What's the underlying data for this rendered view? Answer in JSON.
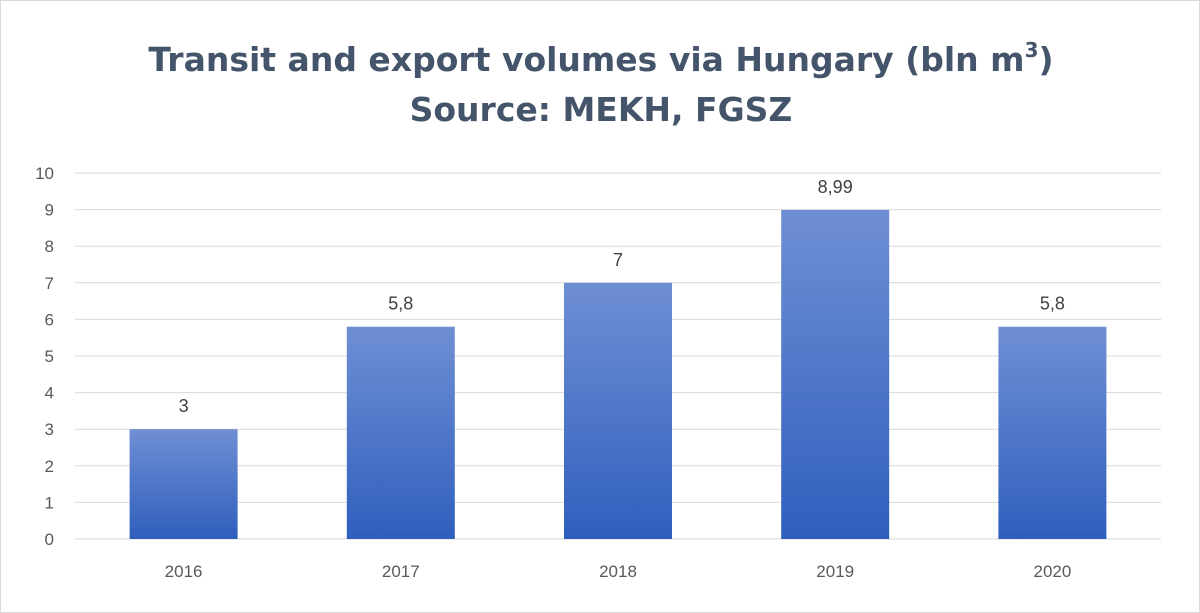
{
  "chart_data": {
    "type": "bar",
    "title_line1": "Transit and export volumes via Hungary (bln m",
    "title_sup": "3",
    "title_line1_end": ")",
    "title_line2": "Source: MEKH, FGSZ",
    "categories": [
      "2016",
      "2017",
      "2018",
      "2019",
      "2020"
    ],
    "values": [
      3,
      5.8,
      7,
      8.99,
      5.8
    ],
    "data_labels": [
      "3",
      "5,8",
      "7",
      "8,99",
      "5,8"
    ],
    "ylim": [
      0,
      10
    ],
    "yticks": [
      "0",
      "1",
      "2",
      "3",
      "4",
      "5",
      "6",
      "7",
      "8",
      "9",
      "10"
    ],
    "grid": true,
    "legend": "none",
    "colors": {
      "bar_top": "#6f8fd4",
      "bar_bottom": "#2f5fbd",
      "grid": "#d9d9d9",
      "title": "#44546a"
    }
  }
}
